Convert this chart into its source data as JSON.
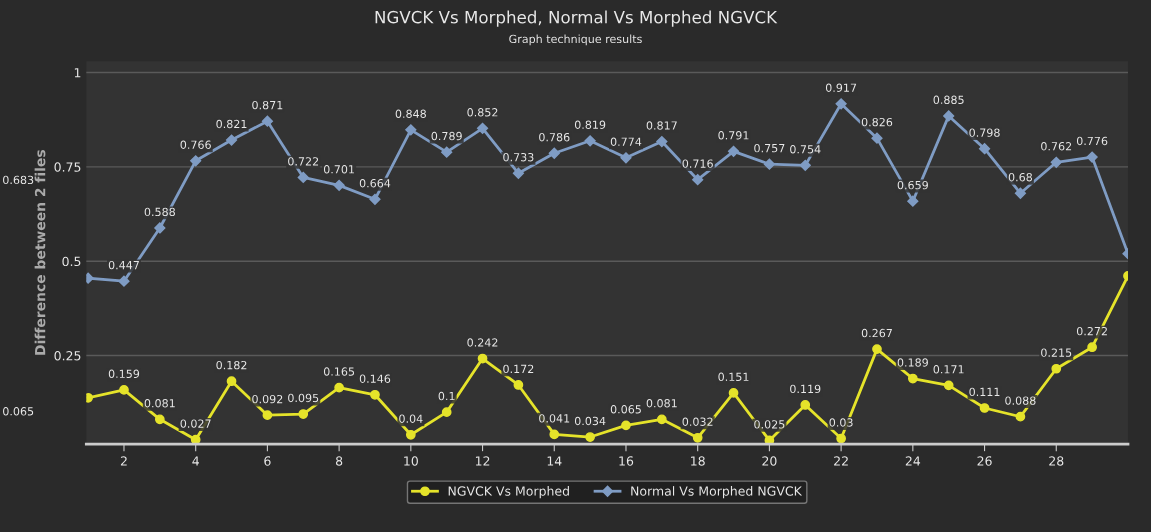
{
  "chart_data": {
    "type": "line",
    "title": "NGVCK Vs Morphed, Normal Vs Morphed NGVCK",
    "subtitle": "Graph technique results",
    "ylabel": "Difference between 2 files",
    "x": [
      1,
      2,
      3,
      4,
      5,
      6,
      7,
      8,
      9,
      10,
      11,
      12,
      13,
      14,
      15,
      16,
      17,
      18,
      19,
      20,
      21,
      22,
      23,
      24,
      25,
      26,
      27,
      28,
      29,
      30
    ],
    "series": [
      {
        "name": "NGVCK Vs Morphed",
        "color": "#e5e32a",
        "marker": "circle",
        "values": [
          0.138,
          0.159,
          0.081,
          0.027,
          0.182,
          0.092,
          0.095,
          0.165,
          0.146,
          0.04,
          0.1,
          0.242,
          0.172,
          0.041,
          0.034,
          0.065,
          0.081,
          0.032,
          0.151,
          0.025,
          0.119,
          0.03,
          0.267,
          0.189,
          0.171,
          0.111,
          0.088,
          0.215,
          0.272,
          0.461
        ],
        "value_labels": [
          null,
          "0.159",
          "0.081",
          "0.027",
          "0.182",
          "0.092",
          "0.095",
          "0.165",
          "0.146",
          "0.04",
          "0.1",
          "0.242",
          "0.172",
          "0.041",
          "0.034",
          "0.065",
          "0.081",
          "0.032",
          "0.151",
          "0.025",
          "0.119",
          "0.03",
          "0.267",
          "0.189",
          "0.171",
          "0.111",
          "0.088",
          "0.215",
          "0.272",
          null
        ]
      },
      {
        "name": "Normal Vs Morphed NGVCK",
        "color": "#7f9cc4",
        "marker": "diamond",
        "values": [
          0.455,
          0.447,
          0.588,
          0.766,
          0.821,
          0.871,
          0.722,
          0.701,
          0.664,
          0.848,
          0.789,
          0.852,
          0.733,
          0.786,
          0.819,
          0.774,
          0.817,
          0.716,
          0.791,
          0.757,
          0.754,
          0.917,
          0.826,
          0.659,
          0.885,
          0.798,
          0.68,
          0.762,
          0.776,
          0.52
        ],
        "value_labels": [
          null,
          "0.447",
          "0.588",
          "0.766",
          "0.821",
          "0.871",
          "0.722",
          "0.701",
          "0.664",
          "0.848",
          "0.789",
          "0.852",
          "0.733",
          "0.786",
          "0.819",
          "0.774",
          "0.817",
          "0.716",
          "0.791",
          "0.757",
          "0.754",
          "0.917",
          "0.826",
          "0.659",
          "0.885",
          "0.798",
          "0.68",
          "0.762",
          "0.776",
          null
        ]
      }
    ],
    "annotations": [
      "0.683",
      "0.065"
    ],
    "xlim": [
      0.95,
      30
    ],
    "xticks": [
      2,
      4,
      6,
      8,
      10,
      12,
      14,
      16,
      18,
      20,
      22,
      24,
      26,
      28
    ],
    "ylim": [
      0.015,
      1.03
    ],
    "yticks": [
      0.25,
      0.5,
      0.75,
      1
    ],
    "grid": "y",
    "legend": "bottom",
    "line_style": "solid"
  }
}
